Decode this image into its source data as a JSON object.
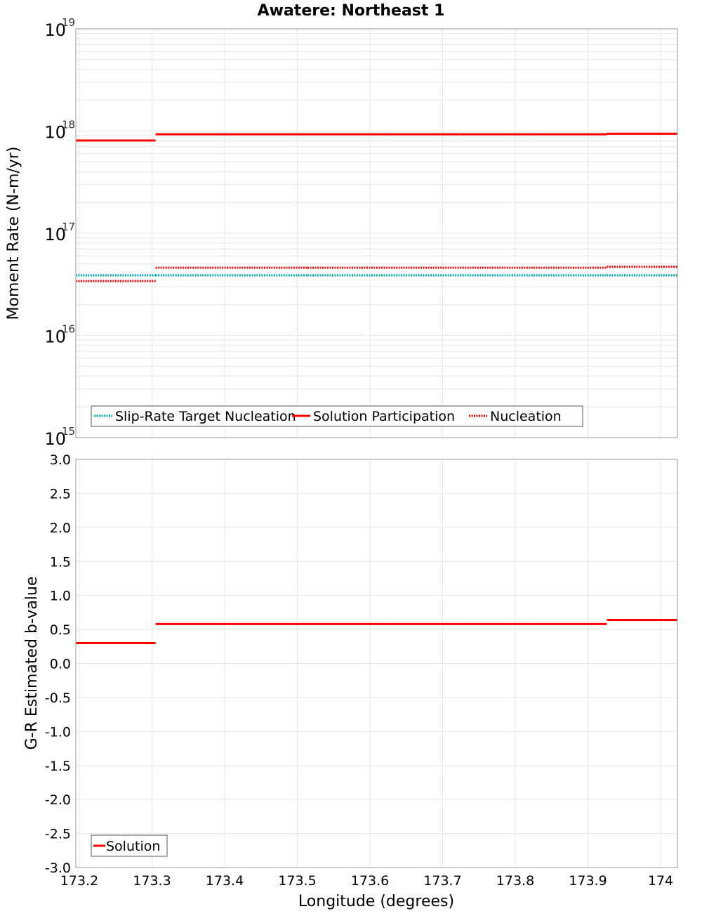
{
  "chart_data": [
    {
      "type": "line",
      "title": "Awatere: Northeast 1",
      "xlabel": "Longitude (degrees)",
      "ylabel": "Moment Rate (N-m/yr)",
      "yscale": "log",
      "ylim": [
        1000000000000000.0,
        1e+19
      ],
      "xlim": [
        173.195,
        174.023
      ],
      "ytick_labels": [
        {
          "base": "10",
          "exp": "15",
          "value": 1000000000000000.0
        },
        {
          "base": "10",
          "exp": "16",
          "value": 1e+16
        },
        {
          "base": "10",
          "exp": "17",
          "value": 1e+17
        },
        {
          "base": "10",
          "exp": "18",
          "value": 1e+18
        },
        {
          "base": "10",
          "exp": "19",
          "value": 1e+19
        }
      ],
      "segment_edges": [
        173.195,
        173.305,
        173.41,
        173.514,
        173.619,
        173.724,
        173.825,
        173.926,
        174.023
      ],
      "series": [
        {
          "name": "Slip-Rate Target Nucleation",
          "color": "#00aaaa",
          "style": "dotted",
          "values": [
            3.87e+16,
            3.87e+16,
            3.87e+16,
            3.87e+16,
            3.87e+16,
            3.87e+16,
            3.87e+16,
            3.87e+16
          ]
        },
        {
          "name": "Solution Participation",
          "color": "#ff0000",
          "style": "solid",
          "values": [
            8.07e+17,
            9.3e+17,
            9.3e+17,
            9.3e+17,
            9.3e+17,
            9.3e+17,
            9.3e+17,
            9.4e+17
          ]
        },
        {
          "name": "Nucleation",
          "color": "#ff0000",
          "style": "dotted",
          "values": [
            3.4e+16,
            4.6e+16,
            4.6e+16,
            4.6e+16,
            4.6e+16,
            4.6e+16,
            4.6e+16,
            4.7e+16
          ]
        }
      ],
      "legend": "bottom-left",
      "grid": true
    },
    {
      "type": "line",
      "xlabel": "Longitude (degrees)",
      "ylabel": "G-R Estimated b-value",
      "ylim": [
        -3.0,
        3.0
      ],
      "xlim": [
        173.195,
        174.023
      ],
      "xticks": [
        "173.2",
        "173.3",
        "173.4",
        "173.5",
        "173.6",
        "173.7",
        "173.8",
        "173.9",
        "174"
      ],
      "yticks": [
        "3.0",
        "2.5",
        "2.0",
        "1.5",
        "1.0",
        "0.5",
        "0.0",
        "-0.5",
        "-1.0",
        "-1.5",
        "-2.0",
        "-2.5",
        "-3.0"
      ],
      "segment_edges": [
        173.195,
        173.305,
        173.41,
        173.514,
        173.619,
        173.724,
        173.825,
        173.926,
        174.023
      ],
      "series": [
        {
          "name": "Solution",
          "color": "#ff0000",
          "style": "solid",
          "values": [
            0.3,
            0.58,
            0.58,
            0.58,
            0.58,
            0.58,
            0.58,
            0.64
          ]
        }
      ],
      "legend": "bottom-left",
      "grid": true
    }
  ]
}
